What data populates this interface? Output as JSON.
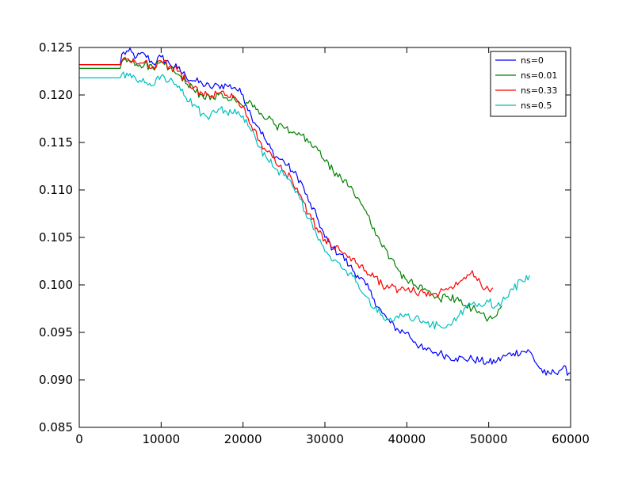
{
  "chart_data": {
    "type": "line",
    "title": "",
    "xlabel": "",
    "ylabel": "",
    "xlim": [
      0,
      60000
    ],
    "ylim": [
      0.085,
      0.125
    ],
    "x_ticks": [
      0,
      10000,
      20000,
      30000,
      40000,
      50000,
      60000
    ],
    "x_tick_labels": [
      "0",
      "10000",
      "20000",
      "30000",
      "40000",
      "50000",
      "60000"
    ],
    "y_ticks": [
      0.085,
      0.09,
      0.095,
      0.1,
      0.105,
      0.11,
      0.115,
      0.12,
      0.125
    ],
    "y_tick_labels": [
      "0.085",
      "0.090",
      "0.095",
      "0.100",
      "0.105",
      "0.110",
      "0.115",
      "0.120",
      "0.125"
    ],
    "grid": false,
    "legend_position": "top-right",
    "series": [
      {
        "name": "ns=0",
        "color": "#0000ff",
        "points": [
          [
            0,
            0.1232
          ],
          [
            5000,
            0.1232
          ],
          [
            5200,
            0.1243
          ],
          [
            6000,
            0.1246
          ],
          [
            7000,
            0.124
          ],
          [
            8000,
            0.1243
          ],
          [
            9000,
            0.1233
          ],
          [
            10000,
            0.124
          ],
          [
            11000,
            0.1233
          ],
          [
            12000,
            0.1228
          ],
          [
            13000,
            0.122
          ],
          [
            14000,
            0.1215
          ],
          [
            15000,
            0.1212
          ],
          [
            16000,
            0.1208
          ],
          [
            17000,
            0.121
          ],
          [
            18000,
            0.121
          ],
          [
            19000,
            0.1208
          ],
          [
            20000,
            0.12
          ],
          [
            21000,
            0.1178
          ],
          [
            22000,
            0.1165
          ],
          [
            23000,
            0.1148
          ],
          [
            24000,
            0.1135
          ],
          [
            25000,
            0.113
          ],
          [
            26000,
            0.112
          ],
          [
            27000,
            0.111
          ],
          [
            28000,
            0.1088
          ],
          [
            29000,
            0.1072
          ],
          [
            30000,
            0.105
          ],
          [
            31000,
            0.1038
          ],
          [
            32000,
            0.1032
          ],
          [
            33000,
            0.102
          ],
          [
            34000,
            0.101
          ],
          [
            35000,
            0.1
          ],
          [
            36000,
            0.0985
          ],
          [
            37000,
            0.097
          ],
          [
            38000,
            0.096
          ],
          [
            39000,
            0.0952
          ],
          [
            40000,
            0.095
          ],
          [
            41000,
            0.094
          ],
          [
            42000,
            0.0932
          ],
          [
            43000,
            0.093
          ],
          [
            44000,
            0.0928
          ],
          [
            45000,
            0.0925
          ],
          [
            46000,
            0.0923
          ],
          [
            47000,
            0.0922
          ],
          [
            48000,
            0.0922
          ],
          [
            49000,
            0.092
          ],
          [
            50000,
            0.0918
          ],
          [
            51000,
            0.092
          ],
          [
            52000,
            0.0925
          ],
          [
            53000,
            0.0928
          ],
          [
            54000,
            0.093
          ],
          [
            55000,
            0.093
          ],
          [
            56000,
            0.0915
          ],
          [
            57000,
            0.0905
          ],
          [
            58000,
            0.0908
          ],
          [
            59000,
            0.0912
          ],
          [
            60000,
            0.0907
          ]
        ]
      },
      {
        "name": "ns=0.01",
        "color": "#008000",
        "points": [
          [
            0,
            0.1228
          ],
          [
            5000,
            0.1228
          ],
          [
            5200,
            0.1235
          ],
          [
            6000,
            0.1237
          ],
          [
            7000,
            0.1232
          ],
          [
            8000,
            0.1233
          ],
          [
            9000,
            0.1228
          ],
          [
            10000,
            0.1235
          ],
          [
            11000,
            0.1228
          ],
          [
            12000,
            0.1222
          ],
          [
            13000,
            0.1212
          ],
          [
            14000,
            0.1205
          ],
          [
            15000,
            0.12
          ],
          [
            16000,
            0.1195
          ],
          [
            17000,
            0.12
          ],
          [
            18000,
            0.1197
          ],
          [
            19000,
            0.1195
          ],
          [
            20000,
            0.1188
          ],
          [
            21000,
            0.1192
          ],
          [
            22000,
            0.118
          ],
          [
            23000,
            0.1175
          ],
          [
            24000,
            0.1168
          ],
          [
            25000,
            0.1165
          ],
          [
            26000,
            0.116
          ],
          [
            27000,
            0.1158
          ],
          [
            28000,
            0.115
          ],
          [
            29000,
            0.1145
          ],
          [
            30000,
            0.113
          ],
          [
            31000,
            0.112
          ],
          [
            32000,
            0.1112
          ],
          [
            33000,
            0.1103
          ],
          [
            34000,
            0.1092
          ],
          [
            35000,
            0.1078
          ],
          [
            36000,
            0.106
          ],
          [
            37000,
            0.104
          ],
          [
            38000,
            0.1028
          ],
          [
            39000,
            0.1015
          ],
          [
            40000,
            0.1005
          ],
          [
            41000,
            0.1
          ],
          [
            42000,
            0.0995
          ],
          [
            43000,
            0.099
          ],
          [
            44000,
            0.0985
          ],
          [
            45000,
            0.0988
          ],
          [
            46000,
            0.0985
          ],
          [
            47000,
            0.0978
          ],
          [
            48000,
            0.0975
          ],
          [
            49000,
            0.097
          ],
          [
            50000,
            0.0965
          ],
          [
            51000,
            0.0968
          ],
          [
            51600,
            0.0978
          ]
        ]
      },
      {
        "name": "ns=0.33",
        "color": "#ff0000",
        "points": [
          [
            0,
            0.1232
          ],
          [
            5000,
            0.1232
          ],
          [
            5200,
            0.1236
          ],
          [
            6000,
            0.1238
          ],
          [
            7000,
            0.1233
          ],
          [
            8000,
            0.1235
          ],
          [
            9000,
            0.123
          ],
          [
            10000,
            0.1236
          ],
          [
            11000,
            0.123
          ],
          [
            12000,
            0.1225
          ],
          [
            13000,
            0.1215
          ],
          [
            14000,
            0.1208
          ],
          [
            15000,
            0.1202
          ],
          [
            16000,
            0.1198
          ],
          [
            17000,
            0.1202
          ],
          [
            18000,
            0.12
          ],
          [
            19000,
            0.1198
          ],
          [
            20000,
            0.1188
          ],
          [
            21000,
            0.1168
          ],
          [
            22000,
            0.1152
          ],
          [
            23000,
            0.114
          ],
          [
            24000,
            0.1128
          ],
          [
            25000,
            0.112
          ],
          [
            26000,
            0.111
          ],
          [
            27000,
            0.1095
          ],
          [
            28000,
            0.1075
          ],
          [
            29000,
            0.106
          ],
          [
            30000,
            0.1048
          ],
          [
            31000,
            0.104
          ],
          [
            32000,
            0.1035
          ],
          [
            33000,
            0.103
          ],
          [
            34000,
            0.1022
          ],
          [
            35000,
            0.1015
          ],
          [
            36000,
            0.1008
          ],
          [
            37000,
            0.1
          ],
          [
            38000,
            0.0998
          ],
          [
            39000,
            0.0995
          ],
          [
            40000,
            0.0995
          ],
          [
            41000,
            0.0993
          ],
          [
            42000,
            0.0992
          ],
          [
            43000,
            0.099
          ],
          [
            44000,
            0.0992
          ],
          [
            45000,
            0.0995
          ],
          [
            46000,
            0.1003
          ],
          [
            47000,
            0.1008
          ],
          [
            48000,
            0.1015
          ],
          [
            49000,
            0.1002
          ],
          [
            50000,
            0.0995
          ],
          [
            50500,
            0.0997
          ]
        ]
      },
      {
        "name": "ns=0.5",
        "color": "#00bfbf",
        "points": [
          [
            0,
            0.1218
          ],
          [
            5000,
            0.1218
          ],
          [
            5200,
            0.1222
          ],
          [
            6000,
            0.122
          ],
          [
            7000,
            0.1215
          ],
          [
            8000,
            0.1213
          ],
          [
            9000,
            0.121
          ],
          [
            10000,
            0.122
          ],
          [
            11000,
            0.1215
          ],
          [
            12000,
            0.1208
          ],
          [
            13000,
            0.1198
          ],
          [
            14000,
            0.119
          ],
          [
            15000,
            0.118
          ],
          [
            16000,
            0.1178
          ],
          [
            17000,
            0.1185
          ],
          [
            18000,
            0.1182
          ],
          [
            19000,
            0.1185
          ],
          [
            20000,
            0.1178
          ],
          [
            21000,
            0.1162
          ],
          [
            22000,
            0.1145
          ],
          [
            23000,
            0.1132
          ],
          [
            24000,
            0.1122
          ],
          [
            25000,
            0.1115
          ],
          [
            26000,
            0.1105
          ],
          [
            27000,
            0.109
          ],
          [
            28000,
            0.107
          ],
          [
            29000,
            0.1052
          ],
          [
            30000,
            0.1035
          ],
          [
            31000,
            0.1025
          ],
          [
            32000,
            0.1018
          ],
          [
            33000,
            0.1012
          ],
          [
            34000,
            0.1002
          ],
          [
            35000,
            0.0988
          ],
          [
            36000,
            0.0975
          ],
          [
            37000,
            0.0968
          ],
          [
            38000,
            0.0965
          ],
          [
            39000,
            0.0965
          ],
          [
            40000,
            0.0968
          ],
          [
            41000,
            0.0965
          ],
          [
            42000,
            0.0962
          ],
          [
            43000,
            0.0958
          ],
          [
            44000,
            0.0957
          ],
          [
            45000,
            0.0958
          ],
          [
            46000,
            0.0962
          ],
          [
            47000,
            0.0975
          ],
          [
            48000,
            0.098
          ],
          [
            49000,
            0.0978
          ],
          [
            50000,
            0.0982
          ],
          [
            51000,
            0.0978
          ],
          [
            52000,
            0.0985
          ],
          [
            53000,
            0.0995
          ],
          [
            54000,
            0.1005
          ],
          [
            55000,
            0.101
          ]
        ]
      }
    ]
  }
}
